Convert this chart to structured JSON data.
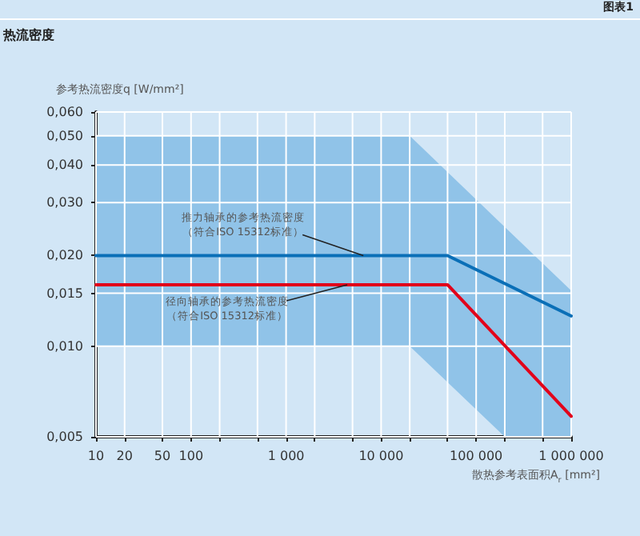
{
  "chart_data": {
    "type": "line",
    "title": "热流密度",
    "xlabel": "散热参考表面积A$_{r}$ [mm²]",
    "ylabel": "参考热流密度q [W/mm²]",
    "log": "xy",
    "grid": true,
    "marker": "none",
    "line_style": "solid",
    "xlim": [
      10,
      1000000
    ],
    "ylim": [
      0.005,
      0.06
    ],
    "xticks": [
      10,
      20,
      50,
      100,
      {
        "value": 200,
        "label": null
      },
      {
        "value": 500,
        "label": null
      },
      {
        "value": 1000,
        "label": "1 000"
      },
      {
        "value": 2000,
        "label": null
      },
      {
        "value": 5000,
        "label": null
      },
      {
        "value": 10000,
        "label": "10 000"
      },
      {
        "value": 20000,
        "label": null
      },
      {
        "value": 50000,
        "label": null
      },
      {
        "value": 100000,
        "label": "100 000"
      },
      {
        "value": 200000,
        "label": null
      },
      {
        "value": 500000,
        "label": null
      },
      {
        "value": 1000000,
        "label": "1 000 000"
      }
    ],
    "yticks": [
      {
        "value": 0.005,
        "label": "0,005"
      },
      {
        "value": 0.01,
        "label": "0,010"
      },
      {
        "value": 0.015,
        "label": "0,015"
      },
      {
        "value": 0.02,
        "label": "0,020"
      },
      {
        "value": 0.03,
        "label": "0,030"
      },
      {
        "value": 0.04,
        "label": "0,040"
      },
      {
        "value": 0.05,
        "label": "0,050"
      },
      {
        "value": 0.06,
        "label": "0,060"
      }
    ],
    "series": [
      {
        "color": "#90c3e8",
        "x": [
          10,
          20000,
          200000,
          1000000
        ],
        "values": [
          null,
          null,
          null,
          null
        ],
        "upper": [
          0.05,
          0.05,
          0.0249,
          0.0153
        ],
        "lower": [
          0.01,
          0.01,
          0.005,
          0.005
        ]
      },
      {
        "color": "#0a6fb7",
        "x": [
          10,
          50000,
          1000000
        ],
        "values": [
          0.02,
          0.02,
          0.0126
        ]
      },
      {
        "color": "#e2001a",
        "x": [
          10,
          50000,
          1000000
        ],
        "values": [
          0.016,
          0.016,
          0.00585
        ]
      }
    ],
    "annotations": [
      "图表1",
      {
        "text": "推力轴承的参考热流密度（符合ISO 15312标准）",
        "x": 6500,
        "y": 0.02
      },
      {
        "text": "径向轴承的参考热流密度（符合ISO 15312标准）",
        "x": 4400,
        "y": 0.016
      }
    ]
  }
}
